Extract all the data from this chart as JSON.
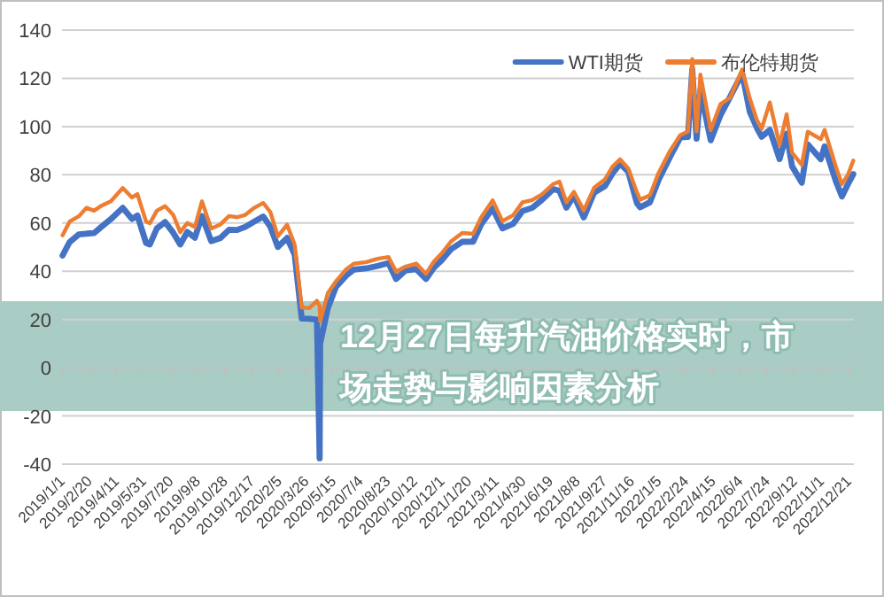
{
  "chart_data": {
    "type": "line",
    "title": "12月27日每升汽油价格实时，市场走势与影响因素分析",
    "x": [
      "2019-01-02",
      "2019-01-15",
      "2019-02-01",
      "2019-02-15",
      "2019-03-01",
      "2019-03-15",
      "2019-04-01",
      "2019-04-23",
      "2019-05-10",
      "2019-05-20",
      "2019-06-05",
      "2019-06-12",
      "2019-06-25",
      "2019-07-10",
      "2019-07-25",
      "2019-08-07",
      "2019-08-20",
      "2019-09-03",
      "2019-09-16",
      "2019-10-03",
      "2019-10-20",
      "2019-11-05",
      "2019-11-20",
      "2019-12-05",
      "2019-12-20",
      "2020-01-07",
      "2020-01-20",
      "2020-02-03",
      "2020-02-20",
      "2020-03-05",
      "2020-03-18",
      "2020-04-01",
      "2020-04-15",
      "2020-04-20",
      "2020-04-21",
      "2020-05-05",
      "2020-05-20",
      "2020-06-08",
      "2020-06-22",
      "2020-07-15",
      "2020-08-05",
      "2020-08-25",
      "2020-09-08",
      "2020-09-25",
      "2020-10-15",
      "2020-11-02",
      "2020-11-16",
      "2020-12-01",
      "2020-12-18",
      "2021-01-08",
      "2021-01-28",
      "2021-02-12",
      "2021-03-05",
      "2021-03-23",
      "2021-04-12",
      "2021-04-29",
      "2021-05-17",
      "2021-06-04",
      "2021-06-25",
      "2021-07-06",
      "2021-07-19",
      "2021-08-02",
      "2021-08-20",
      "2021-09-08",
      "2021-09-28",
      "2021-10-12",
      "2021-10-26",
      "2021-11-10",
      "2021-11-26",
      "2021-12-02",
      "2021-12-20",
      "2022-01-05",
      "2022-01-26",
      "2022-02-14",
      "2022-02-28",
      "2022-03-08",
      "2022-03-16",
      "2022-03-23",
      "2022-04-11",
      "2022-04-29",
      "2022-05-17",
      "2022-06-08",
      "2022-06-22",
      "2022-07-05",
      "2022-07-14",
      "2022-07-29",
      "2022-08-16",
      "2022-08-29",
      "2022-09-08",
      "2022-09-26",
      "2022-10-07",
      "2022-10-31",
      "2022-11-07",
      "2022-11-28",
      "2022-12-09",
      "2022-12-20",
      "2022-12-30"
    ],
    "series": [
      {
        "name": "WTI期货",
        "color": "#4472c4",
        "values": [
          46.5,
          52.1,
          55.3,
          55.6,
          55.8,
          58.5,
          61.6,
          66.3,
          61.7,
          63.1,
          51.7,
          51.1,
          57.8,
          60.4,
          56.0,
          51.1,
          56.3,
          53.9,
          62.9,
          52.5,
          53.8,
          57.2,
          57.1,
          58.4,
          60.4,
          62.7,
          58.5,
          50.1,
          53.8,
          46.8,
          20.4,
          20.3,
          19.9,
          -37.6,
          10.0,
          24.6,
          33.5,
          38.2,
          40.7,
          41.2,
          42.2,
          43.4,
          36.8,
          40.3,
          40.9,
          36.8,
          41.3,
          44.6,
          49.1,
          52.2,
          52.3,
          59.5,
          66.1,
          57.8,
          59.7,
          65.0,
          66.3,
          69.6,
          74.1,
          73.4,
          66.4,
          71.3,
          62.3,
          72.6,
          75.3,
          80.6,
          84.6,
          81.3,
          68.2,
          66.5,
          68.6,
          77.9,
          87.4,
          95.5,
          95.7,
          123.7,
          95.0,
          114.9,
          94.3,
          104.7,
          112.4,
          122.1,
          106.2,
          99.5,
          95.8,
          98.6,
          86.5,
          97.0,
          83.5,
          76.7,
          92.6,
          86.5,
          91.8,
          77.2,
          71.0,
          76.1,
          80.3
        ]
      },
      {
        "name": "布伦特期货",
        "color": "#ed7d31",
        "values": [
          54.9,
          60.6,
          62.8,
          66.3,
          65.1,
          67.2,
          69.0,
          74.5,
          70.6,
          72.0,
          60.6,
          59.9,
          65.1,
          67.0,
          63.4,
          56.2,
          60.0,
          58.3,
          69.0,
          57.7,
          59.4,
          62.9,
          62.4,
          63.4,
          66.1,
          68.3,
          64.6,
          54.5,
          59.3,
          51.0,
          24.9,
          24.7,
          27.7,
          25.6,
          19.3,
          30.9,
          35.8,
          40.8,
          43.1,
          43.8,
          45.2,
          45.9,
          39.8,
          41.9,
          43.2,
          38.9,
          43.8,
          47.4,
          52.3,
          55.9,
          55.5,
          62.4,
          69.4,
          60.8,
          63.3,
          68.6,
          69.5,
          71.9,
          76.2,
          77.2,
          68.6,
          72.9,
          65.2,
          74.6,
          78.1,
          83.4,
          86.4,
          82.6,
          72.7,
          69.7,
          71.5,
          80.8,
          89.9,
          96.5,
          97.9,
          128.0,
          98.0,
          121.6,
          98.5,
          109.3,
          112.0,
          123.6,
          111.7,
          102.8,
          99.1,
          110.0,
          92.3,
          105.1,
          89.2,
          84.1,
          97.9,
          94.8,
          98.6,
          83.2,
          76.1,
          80.0,
          85.9
        ]
      }
    ],
    "xlim": [
      "2019-01-01",
      "2022-12-31"
    ],
    "xticks": [
      {
        "value": "2019-01-01",
        "label": "2019/1/1"
      },
      {
        "value": "2019-02-20",
        "label": "2019/2/20"
      },
      {
        "value": "2019-04-11",
        "label": "2019/4/11"
      },
      {
        "value": "2019-05-31",
        "label": "2019/5/31"
      },
      {
        "value": "2019-07-20",
        "label": "2019/7/20"
      },
      {
        "value": "2019-09-08",
        "label": "2019/9/8"
      },
      {
        "value": "2019-10-28",
        "label": "2019/10/28"
      },
      {
        "value": "2019-12-17",
        "label": "2019/12/17"
      },
      {
        "value": "2020-02-05",
        "label": "2020/2/5"
      },
      {
        "value": "2020-03-26",
        "label": "2020/3/26"
      },
      {
        "value": "2020-05-15",
        "label": "2020/5/15"
      },
      {
        "value": "2020-07-04",
        "label": "2020/7/4"
      },
      {
        "value": "2020-08-23",
        "label": "2020/8/23"
      },
      {
        "value": "2020-10-12",
        "label": "2020/10/12"
      },
      {
        "value": "2020-12-01",
        "label": "2020/12/1"
      },
      {
        "value": "2021-01-20",
        "label": "2021/1/20"
      },
      {
        "value": "2021-03-11",
        "label": "2021/3/11"
      },
      {
        "value": "2021-04-30",
        "label": "2021/4/30"
      },
      {
        "value": "2021-06-19",
        "label": "2021/6/19"
      },
      {
        "value": "2021-08-08",
        "label": "2021/8/8"
      },
      {
        "value": "2021-09-27",
        "label": "2021/9/27"
      },
      {
        "value": "2021-11-16",
        "label": "2021/11/16"
      },
      {
        "value": "2022-01-05",
        "label": "2022/1/5"
      },
      {
        "value": "2022-02-24",
        "label": "2022/2/24"
      },
      {
        "value": "2022-04-15",
        "label": "2022/4/15"
      },
      {
        "value": "2022-06-04",
        "label": "2022/6/4"
      },
      {
        "value": "2022-07-24",
        "label": "2022/7/24"
      },
      {
        "value": "2022-09-12",
        "label": "2022/9/12"
      },
      {
        "value": "2022-11-01",
        "label": "2022/11/1"
      },
      {
        "value": "2022-12-21",
        "label": "2022/12/21"
      }
    ],
    "ylim": [
      -40,
      140
    ],
    "yticks": [
      -40,
      -20,
      0,
      20,
      40,
      60,
      80,
      100,
      120,
      140
    ],
    "grid": "y",
    "legend": "top right",
    "line_style": "solid"
  }
}
